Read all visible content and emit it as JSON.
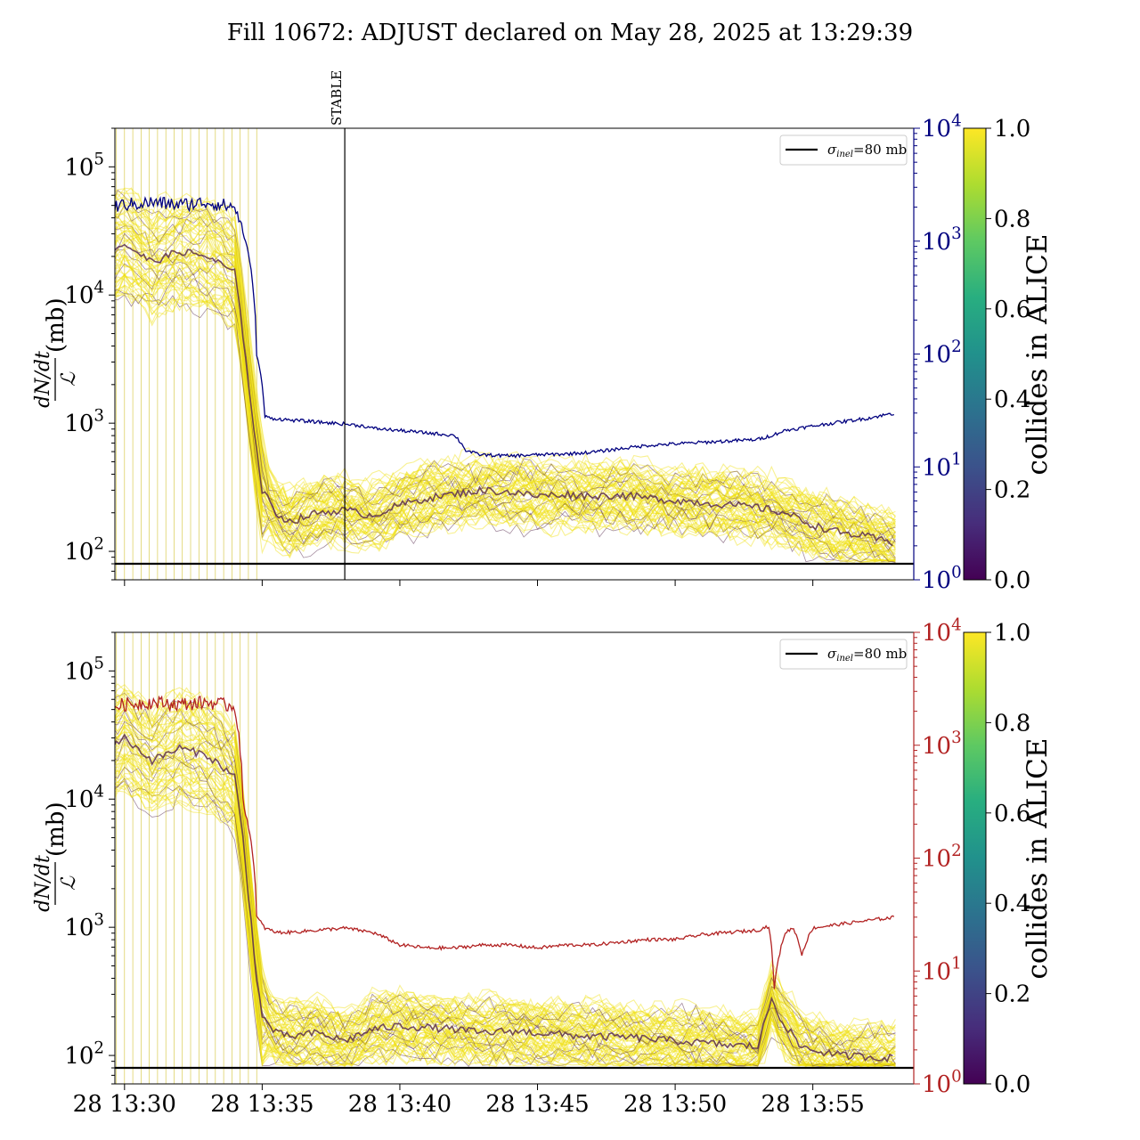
{
  "figure": {
    "title": "Fill 10672: ADJUST declared on May 28, 2025 at 13:29:39"
  },
  "colors": {
    "background": "#ffffff",
    "axes": "#000000",
    "top_right_axis": "#00007f",
    "bottom_right_axis": "#b22222",
    "bunch_yellow": "#f0e010",
    "bunch_dark": "#5a2d50",
    "reference_line": "#000000"
  },
  "chart_data": [
    {
      "type": "line",
      "panel": "top",
      "title": "",
      "xlabel": "",
      "ylabel": "dN/dt / ℒ (mb)",
      "ylabel_parts": {
        "numerator": "dN/dt",
        "denominator": "ℒ",
        "unit": "(mb)"
      },
      "x_tick_labels": [
        "28 13:30",
        "28 13:35",
        "28 13:40",
        "28 13:45",
        "28 13:50",
        "28 13:55"
      ],
      "x_tick_labels_visible": false,
      "x_range_minutes_after_13_29": [
        0,
        29
      ],
      "xlim": [
        "13:29:39",
        "13:58:40"
      ],
      "yscale": "log",
      "ylim": [
        60,
        200000
      ],
      "y_tick_labels": [
        "10^2",
        "10^3",
        "10^4",
        "10^5"
      ],
      "right_axis": {
        "yscale": "log",
        "ylim": [
          1,
          10000
        ],
        "tick_labels": [
          "10^0",
          "10^1",
          "10^2",
          "10^3",
          "10^4"
        ],
        "color": "#00007f"
      },
      "legend": {
        "position": "upper right",
        "entries": [
          {
            "label": "σinel=80 mb",
            "label_main": "σ",
            "label_sub": "inel",
            "label_rest": "=80 mb"
          }
        ]
      },
      "reference_line": {
        "y": 80,
        "label": "σinel=80 mb"
      },
      "annotation": {
        "text": "STABLE",
        "x": "13:38:00"
      },
      "series": [
        {
          "name": "",
          "axis": "right",
          "x_minutes": [
            0,
            0.5,
            1,
            2,
            3,
            4,
            5,
            5.3,
            5.8,
            6.1,
            6.3,
            7,
            8,
            9,
            9.7,
            10,
            11,
            12,
            13,
            13.4,
            13.8,
            14,
            15,
            16,
            17,
            18,
            19,
            20,
            21,
            22,
            23,
            24,
            24.5,
            25,
            26,
            27,
            28,
            29
          ],
          "values": [
            1900,
            2000,
            2100,
            2200,
            2100,
            2200,
            2000,
            1200,
            100,
            28,
            27,
            26,
            25,
            24,
            23,
            22,
            21,
            20,
            19,
            14,
            13,
            12.8,
            12.5,
            12.8,
            13,
            13.5,
            14.5,
            15.5,
            16,
            16.5,
            17,
            17.5,
            19,
            21,
            23,
            25,
            27,
            30
          ]
        },
        {
          "name": "median_rate",
          "axis": "left",
          "x_minutes": [
            0,
            1,
            2,
            3,
            4,
            5,
            5.3,
            5.8,
            6,
            6.5,
            7,
            8,
            9,
            10,
            11,
            12,
            13,
            14,
            15,
            16,
            17,
            18,
            19,
            20,
            21,
            22,
            23,
            24,
            25,
            26,
            27,
            28,
            29
          ],
          "values": [
            20000,
            25000,
            18000,
            22000,
            20000,
            15000,
            5000,
            600,
            300,
            200,
            170,
            200,
            210,
            190,
            230,
            260,
            280,
            300,
            290,
            270,
            280,
            270,
            275,
            260,
            250,
            240,
            230,
            220,
            200,
            160,
            140,
            130,
            115
          ]
        }
      ],
      "colorbar": {
        "label": "collides in ALICE",
        "ticks": [
          "0.0",
          "0.2",
          "0.4",
          "0.6",
          "0.8",
          "1.0"
        ],
        "range": [
          0,
          1
        ],
        "colormap": "viridis"
      }
    },
    {
      "type": "line",
      "panel": "bottom",
      "title": "",
      "xlabel": "",
      "ylabel": "dN/dt / ℒ (mb)",
      "ylabel_parts": {
        "numerator": "dN/dt",
        "denominator": "ℒ",
        "unit": "(mb)"
      },
      "x_tick_labels": [
        "28 13:30",
        "28 13:35",
        "28 13:40",
        "28 13:45",
        "28 13:50",
        "28 13:55"
      ],
      "xlim": [
        "13:29:39",
        "13:58:40"
      ],
      "yscale": "log",
      "ylim": [
        60,
        200000
      ],
      "y_tick_labels": [
        "10^2",
        "10^3",
        "10^4",
        "10^5"
      ],
      "right_axis": {
        "yscale": "log",
        "ylim": [
          1,
          10000
        ],
        "tick_labels": [
          "10^0",
          "10^1",
          "10^2",
          "10^3",
          "10^4"
        ],
        "color": "#b22222"
      },
      "legend": {
        "position": "upper right",
        "entries": [
          {
            "label": "σinel=80 mb",
            "label_main": "σ",
            "label_sub": "inel",
            "label_rest": "=80 mb"
          }
        ]
      },
      "reference_line": {
        "y": 80,
        "label": "σinel=80 mb"
      },
      "series": [
        {
          "name": "",
          "axis": "right",
          "x_minutes": [
            0,
            0.5,
            1,
            2,
            3,
            4,
            5,
            5.3,
            5.8,
            6.1,
            6.5,
            7,
            8,
            9,
            10,
            11,
            12,
            13,
            14,
            15,
            16,
            17,
            18,
            19,
            20,
            21,
            22,
            23,
            24,
            24.4,
            24.6,
            25,
            25.3,
            25.6,
            26,
            27,
            28,
            29
          ],
          "values": [
            2000,
            2200,
            2300,
            2400,
            2300,
            2400,
            2200,
            300,
            30,
            24,
            22,
            22,
            23,
            24,
            22,
            17,
            16,
            16,
            17,
            17,
            16,
            17,
            17,
            18,
            19,
            19,
            21,
            22,
            23,
            25,
            7,
            22,
            24,
            14,
            24,
            26,
            28,
            30
          ]
        },
        {
          "name": "median_rate",
          "axis": "left",
          "x_minutes": [
            0,
            1,
            2,
            3,
            4,
            5,
            5.3,
            5.8,
            6,
            6.5,
            7,
            8,
            9,
            10,
            11,
            12,
            13,
            14,
            15,
            16,
            17,
            18,
            19,
            20,
            21,
            22,
            23,
            24,
            24.5,
            24.8,
            25.5,
            26,
            27,
            28,
            29
          ],
          "values": [
            22000,
            30000,
            20000,
            25000,
            22000,
            15000,
            5000,
            400,
            200,
            150,
            140,
            150,
            130,
            160,
            170,
            165,
            160,
            150,
            155,
            150,
            145,
            140,
            140,
            135,
            130,
            125,
            120,
            118,
            280,
            200,
            120,
            110,
            100,
            98,
            95
          ]
        }
      ],
      "colorbar": {
        "label": "collides in ALICE",
        "ticks": [
          "0.0",
          "0.2",
          "0.4",
          "0.6",
          "0.8",
          "1.0"
        ],
        "range": [
          0,
          1
        ],
        "colormap": "viridis"
      }
    }
  ]
}
